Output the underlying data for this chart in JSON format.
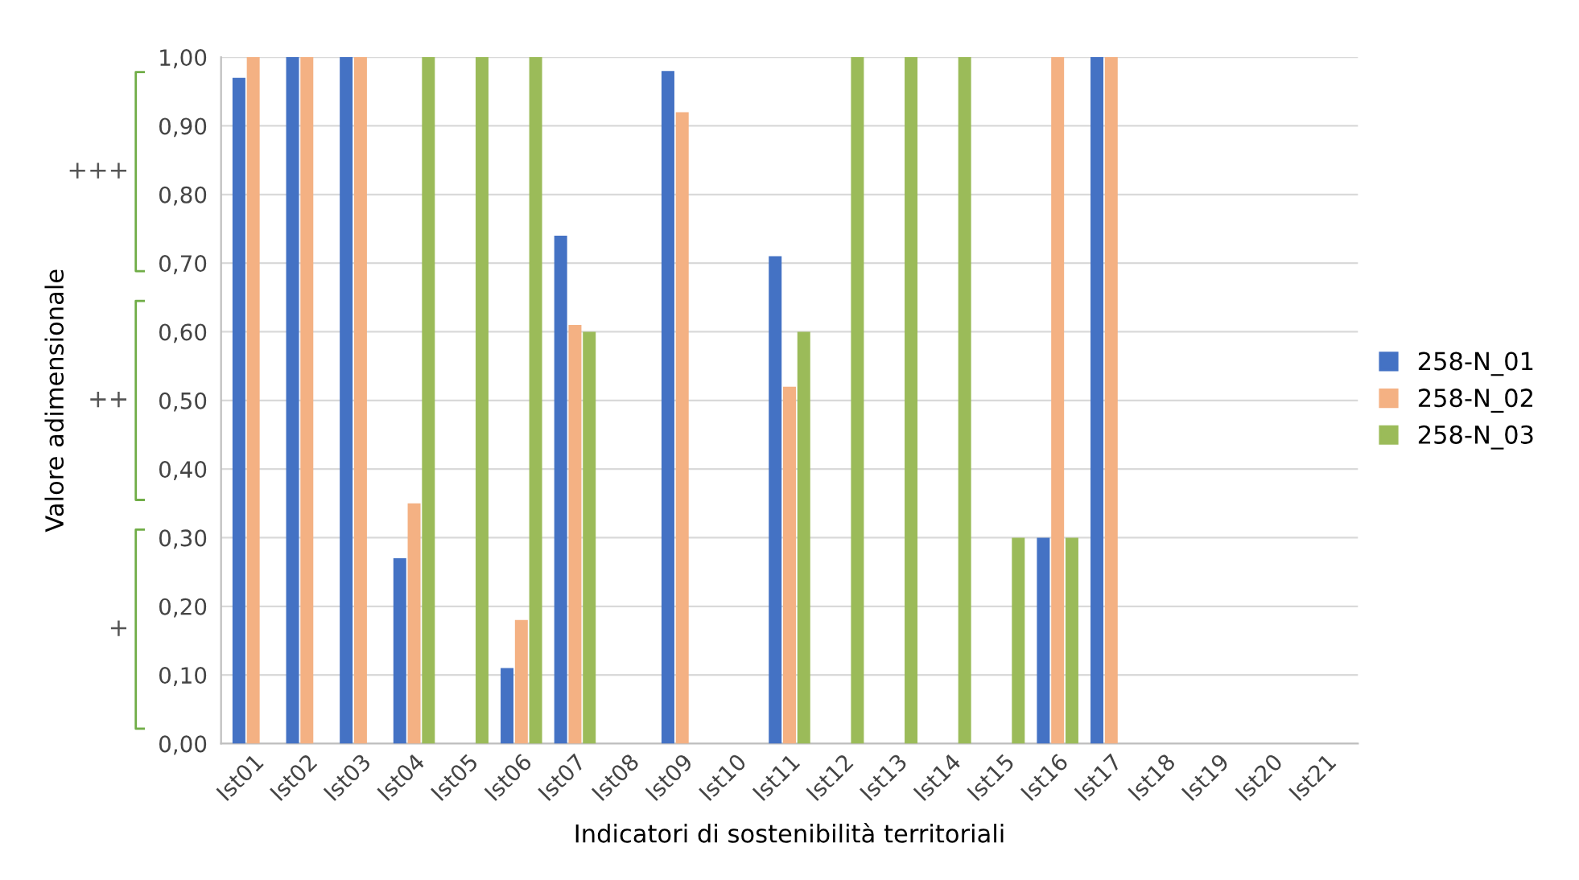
{
  "chart_data": {
    "type": "bar",
    "xlabel": "Indicatori di sostenibilità territoriali",
    "ylabel": "Valore adimensionale",
    "categories": [
      "Ist01",
      "Ist02",
      "Ist03",
      "Ist04",
      "Ist05",
      "Ist06",
      "Ist07",
      "Ist08",
      "Ist09",
      "Ist10",
      "Ist11",
      "Ist12",
      "Ist13",
      "Ist14",
      "Ist15",
      "Ist16",
      "Ist17",
      "Ist18",
      "Ist19",
      "Ist20",
      "Ist21"
    ],
    "series": [
      {
        "name": "258-N_01",
        "color": "#4472c4",
        "values": [
          0.97,
          1.0,
          1.0,
          0.27,
          0,
          0.11,
          0.74,
          0,
          0.98,
          0,
          0.71,
          0,
          0,
          0,
          0,
          0.3,
          1.0,
          0,
          0,
          0,
          0
        ]
      },
      {
        "name": "258-N_02",
        "color": "#f4b183",
        "values": [
          1.0,
          1.0,
          1.0,
          0.35,
          0,
          0.18,
          0.61,
          0,
          0.92,
          0,
          0.52,
          0,
          0,
          0,
          0,
          1.0,
          1.0,
          0,
          0,
          0,
          0
        ]
      },
      {
        "name": "258-N_03",
        "color": "#9bbb59",
        "values": [
          0,
          0,
          0,
          1.0,
          1.0,
          1.0,
          0.6,
          0,
          0,
          0,
          0.6,
          1.0,
          1.0,
          1.0,
          0.3,
          0.3,
          0,
          0,
          0,
          0,
          0
        ]
      }
    ],
    "ylim": [
      0,
      1.0
    ],
    "yticks": [
      {
        "value": 0,
        "label": "0,00"
      },
      {
        "value": 0.1,
        "label": "0,10"
      },
      {
        "value": 0.2,
        "label": "0,20"
      },
      {
        "value": 0.3,
        "label": "0,30"
      },
      {
        "value": 0.4,
        "label": "0,40"
      },
      {
        "value": 0.5,
        "label": "0,50"
      },
      {
        "value": 0.6,
        "label": "0,60"
      },
      {
        "value": 0.7,
        "label": "0,70"
      },
      {
        "value": 0.8,
        "label": "0,80"
      },
      {
        "value": 0.9,
        "label": "0,90"
      },
      {
        "value": 1.0,
        "label": "1,00"
      }
    ],
    "annotations": [
      "+",
      "++",
      "+++"
    ],
    "grid": "y",
    "legend": "right"
  }
}
